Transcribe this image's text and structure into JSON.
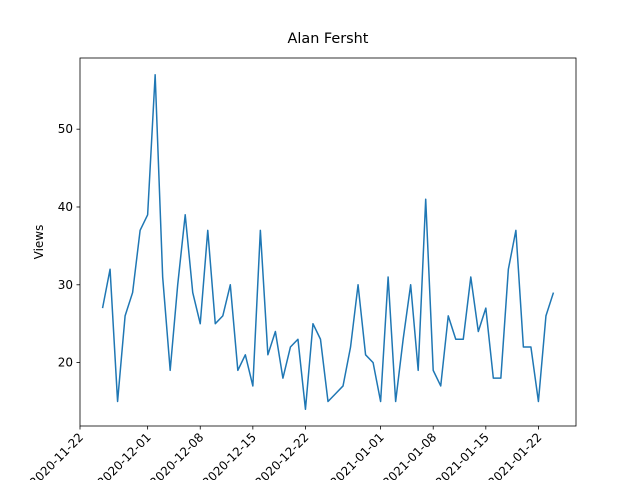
{
  "chart_data": {
    "type": "line",
    "title": "Alan Fersht",
    "ylabel": "Views",
    "x": [
      "2020-11-25",
      "2020-11-26",
      "2020-11-27",
      "2020-11-28",
      "2020-11-29",
      "2020-11-30",
      "2020-12-01",
      "2020-12-02",
      "2020-12-03",
      "2020-12-04",
      "2020-12-05",
      "2020-12-06",
      "2020-12-07",
      "2020-12-08",
      "2020-12-09",
      "2020-12-10",
      "2020-12-11",
      "2020-12-12",
      "2020-12-13",
      "2020-12-14",
      "2020-12-15",
      "2020-12-16",
      "2020-12-17",
      "2020-12-18",
      "2020-12-19",
      "2020-12-20",
      "2020-12-21",
      "2020-12-22",
      "2020-12-23",
      "2020-12-24",
      "2020-12-25",
      "2020-12-26",
      "2020-12-27",
      "2020-12-28",
      "2020-12-29",
      "2020-12-30",
      "2020-12-31",
      "2021-01-01",
      "2021-01-02",
      "2021-01-03",
      "2021-01-04",
      "2021-01-05",
      "2021-01-06",
      "2021-01-07",
      "2021-01-08",
      "2021-01-09",
      "2021-01-10",
      "2021-01-11",
      "2021-01-12",
      "2021-01-13",
      "2021-01-14",
      "2021-01-15",
      "2021-01-16",
      "2021-01-17",
      "2021-01-18",
      "2021-01-19",
      "2021-01-20",
      "2021-01-21",
      "2021-01-22",
      "2021-01-23",
      "2021-01-24"
    ],
    "series": [
      {
        "name": "Views",
        "color": "#1f77b4",
        "values": [
          27,
          32,
          15,
          26,
          29,
          37,
          39,
          57,
          31,
          19,
          30,
          39,
          29,
          25,
          37,
          25,
          26,
          30,
          19,
          21,
          17,
          37,
          21,
          24,
          18,
          22,
          23,
          14,
          25,
          23,
          15,
          16,
          17,
          22,
          30,
          21,
          20,
          15,
          31,
          15,
          23,
          30,
          19,
          41,
          19,
          17,
          26,
          23,
          23,
          31,
          24,
          27,
          18,
          18,
          32,
          37,
          22,
          22,
          15,
          26,
          29
        ]
      }
    ],
    "xlim": [
      "2020-11-22",
      "2021-01-27"
    ],
    "xticks": [
      "2020-11-22",
      "2020-12-01",
      "2020-12-08",
      "2020-12-15",
      "2020-12-22",
      "2021-01-01",
      "2021-01-08",
      "2021-01-15",
      "2021-01-22"
    ],
    "ylim": [
      11.85,
      59.15
    ],
    "yticks": [
      20,
      30,
      40,
      50
    ],
    "grid": false
  }
}
